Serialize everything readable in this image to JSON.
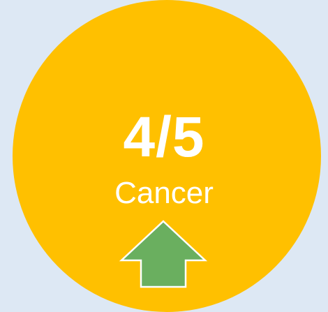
{
  "indicator": {
    "score": "4/5",
    "label": "Cancer",
    "arrow_icon": "arrow-up-icon",
    "colors": {
      "background": "#dde8f4",
      "circle": "#ffc000",
      "text": "#ffffff",
      "arrow_fill": "#6aaf5f",
      "arrow_stroke": "#ffffff"
    }
  }
}
